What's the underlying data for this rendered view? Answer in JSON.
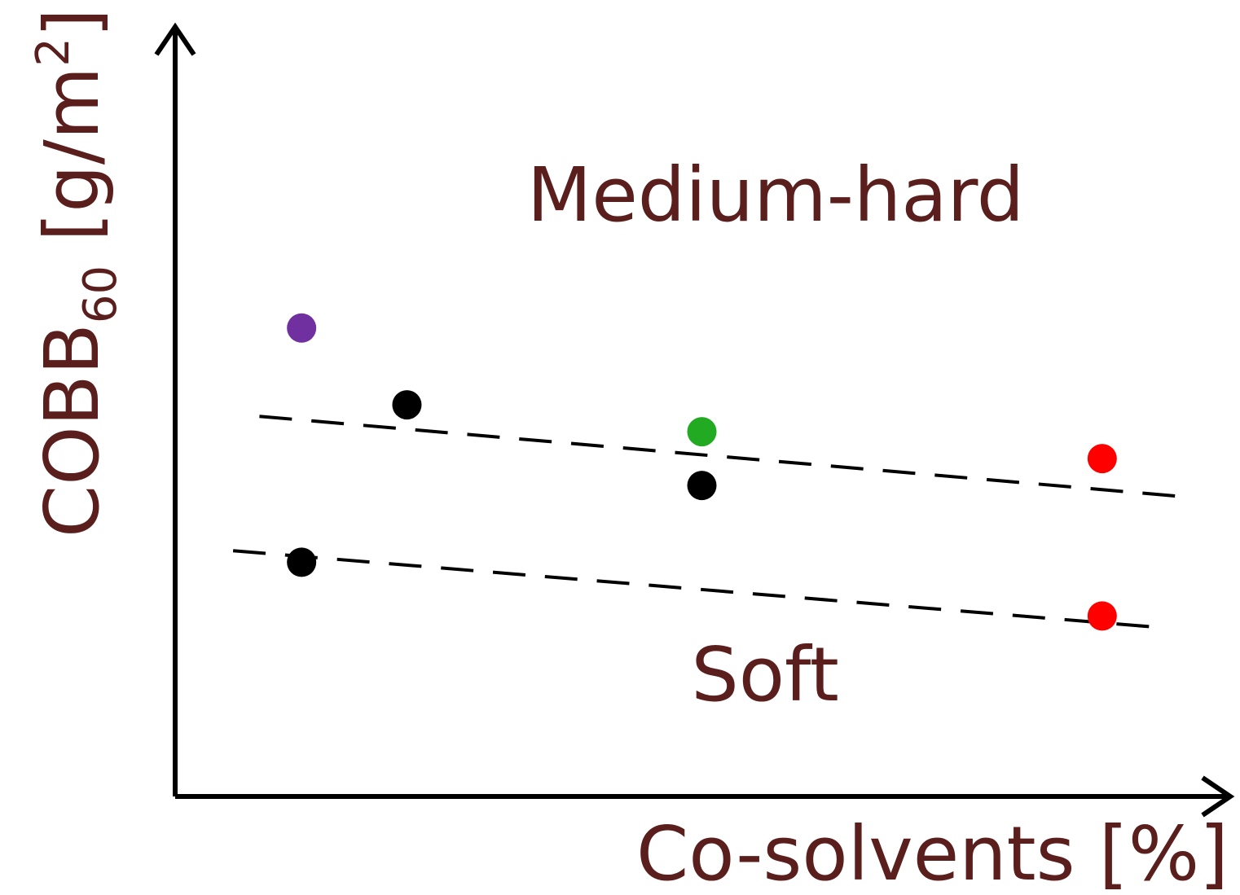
{
  "chart_data": {
    "type": "scatter",
    "ylabel": {
      "main": "COBB",
      "sub": "60",
      "unit": " [g/m",
      "sup": "2",
      "close": "]"
    },
    "xlabel": "Co-solvents [%]",
    "xlim": [
      0,
      10
    ],
    "ylim": [
      0,
      10
    ],
    "grid": false,
    "region_labels": [
      {
        "text": "Medium-hard",
        "x": 5.7,
        "y": 7.5
      },
      {
        "text": "Soft",
        "x": 5.6,
        "y": 1.25
      }
    ],
    "points": [
      {
        "x": 1.2,
        "y": 6.1,
        "color": "#7030a0"
      },
      {
        "x": 2.2,
        "y": 5.1,
        "color": "#000000"
      },
      {
        "x": 5.0,
        "y": 4.75,
        "color": "#22aa22"
      },
      {
        "x": 5.0,
        "y": 4.05,
        "color": "#000000"
      },
      {
        "x": 1.2,
        "y": 3.05,
        "color": "#000000"
      },
      {
        "x": 8.8,
        "y": 4.4,
        "color": "#ff0000"
      },
      {
        "x": 8.8,
        "y": 2.35,
        "color": "#ff0000"
      }
    ],
    "lines": [
      {
        "style": "dashed",
        "from": [
          0.8,
          4.95
        ],
        "to": [
          9.6,
          3.9
        ]
      },
      {
        "style": "dashed",
        "from": [
          0.55,
          3.2
        ],
        "to": [
          9.35,
          2.2
        ]
      }
    ],
    "colors": {
      "axis": "#000000",
      "text": "#5a1f1c"
    }
  }
}
